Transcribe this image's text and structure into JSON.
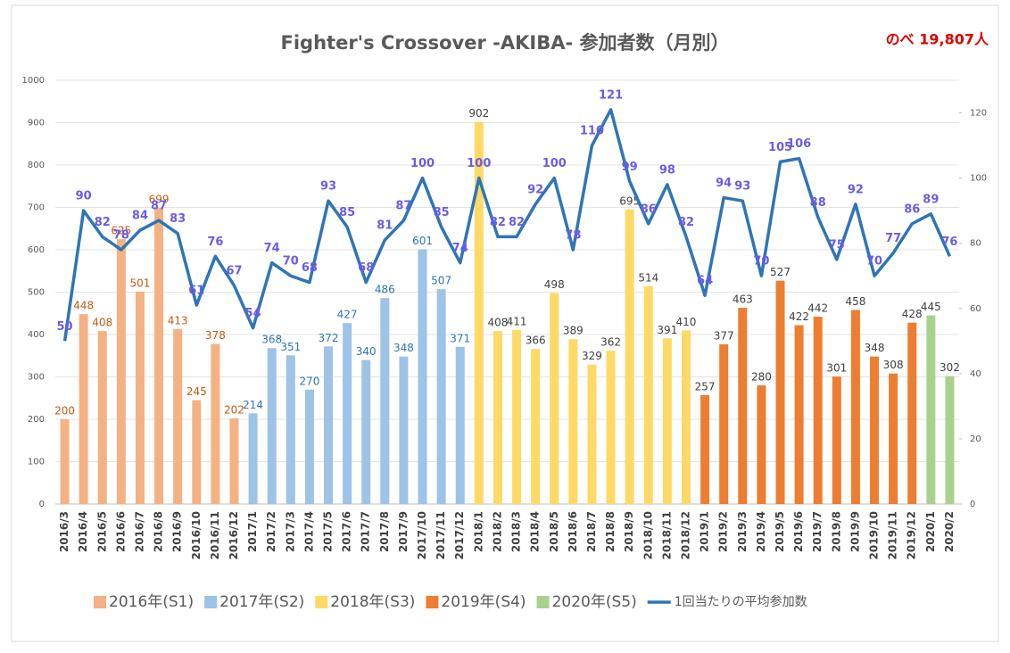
{
  "chart_data": {
    "type": "combo",
    "title": "Fighter's Crossover -AKIBA- 参加者数（月別）",
    "annotation": "のべ 19,807人",
    "categories": [
      "2016/3",
      "2016/4",
      "2016/5",
      "2016/6",
      "2016/7",
      "2016/8",
      "2016/9",
      "2016/10",
      "2016/11",
      "2016/12",
      "2017/1",
      "2017/2",
      "2017/3",
      "2017/4",
      "2017/5",
      "2017/6",
      "2017/7",
      "2017/8",
      "2017/9",
      "2017/10",
      "2017/11",
      "2017/12",
      "2018/1",
      "2018/2",
      "2018/3",
      "2018/4",
      "2018/5",
      "2018/6",
      "2018/7",
      "2018/8",
      "2018/9",
      "2018/10",
      "2018/11",
      "2018/12",
      "2019/1",
      "2019/2",
      "2019/3",
      "2019/4",
      "2019/5",
      "2019/6",
      "2019/7",
      "2019/8",
      "2019/9",
      "2019/10",
      "2019/11",
      "2019/12",
      "2020/1",
      "2020/2"
    ],
    "ylim": [
      0,
      1000
    ],
    "yticks": [
      0,
      100,
      200,
      300,
      400,
      500,
      600,
      700,
      800,
      900,
      1000
    ],
    "y2lim": [
      0,
      130
    ],
    "y2ticks": [
      0,
      20,
      40,
      60,
      80,
      100,
      120
    ],
    "grid": true,
    "series": [
      {
        "name": "2016年(S1)",
        "type": "bar",
        "color": "#f4b183",
        "label_color": "#c55a11",
        "values": [
          200,
          448,
          408,
          625,
          501,
          699,
          413,
          245,
          378,
          202,
          null,
          null,
          null,
          null,
          null,
          null,
          null,
          null,
          null,
          null,
          null,
          null,
          null,
          null,
          null,
          null,
          null,
          null,
          null,
          null,
          null,
          null,
          null,
          null,
          null,
          null,
          null,
          null,
          null,
          null,
          null,
          null,
          null,
          null,
          null,
          null,
          null,
          null
        ]
      },
      {
        "name": "2017年(S2)",
        "type": "bar",
        "color": "#9dc3e6",
        "label_color": "#2e75b6",
        "values": [
          null,
          null,
          null,
          null,
          null,
          null,
          null,
          null,
          null,
          null,
          214,
          368,
          351,
          270,
          372,
          427,
          340,
          486,
          348,
          601,
          507,
          371,
          null,
          null,
          null,
          null,
          null,
          null,
          null,
          null,
          null,
          null,
          null,
          null,
          null,
          null,
          null,
          null,
          null,
          null,
          null,
          null,
          null,
          null,
          null,
          null,
          null,
          null
        ]
      },
      {
        "name": "2018年(S3)",
        "type": "bar",
        "color": "#ffd966",
        "label_color": "#404040",
        "values": [
          null,
          null,
          null,
          null,
          null,
          null,
          null,
          null,
          null,
          null,
          null,
          null,
          null,
          null,
          null,
          null,
          null,
          null,
          null,
          null,
          null,
          null,
          902,
          408,
          411,
          366,
          498,
          389,
          329,
          362,
          695,
          514,
          391,
          410,
          null,
          null,
          null,
          null,
          null,
          null,
          null,
          null,
          null,
          null,
          null,
          null,
          null,
          null
        ]
      },
      {
        "name": "2019年(S4)",
        "type": "bar",
        "color": "#ed7d31",
        "label_color": "#404040",
        "values": [
          null,
          null,
          null,
          null,
          null,
          null,
          null,
          null,
          null,
          null,
          null,
          null,
          null,
          null,
          null,
          null,
          null,
          null,
          null,
          null,
          null,
          null,
          null,
          null,
          null,
          null,
          null,
          null,
          null,
          null,
          null,
          null,
          null,
          null,
          257,
          377,
          463,
          280,
          527,
          422,
          442,
          301,
          458,
          348,
          308,
          428,
          null,
          null
        ]
      },
      {
        "name": "2020年(S5)",
        "type": "bar",
        "color": "#a9d18e",
        "label_color": "#404040",
        "values": [
          null,
          null,
          null,
          null,
          null,
          null,
          null,
          null,
          null,
          null,
          null,
          null,
          null,
          null,
          null,
          null,
          null,
          null,
          null,
          null,
          null,
          null,
          null,
          null,
          null,
          null,
          null,
          null,
          null,
          null,
          null,
          null,
          null,
          null,
          null,
          null,
          null,
          null,
          null,
          null,
          null,
          null,
          null,
          null,
          null,
          null,
          445,
          302
        ]
      },
      {
        "name": "1回当たりの平均参加数",
        "type": "line",
        "axis": "y2",
        "color": "#2e75b6",
        "label_color": "#6b5ce7",
        "values": [
          50,
          90,
          82,
          78,
          84,
          87,
          83,
          61,
          76,
          67,
          54,
          74,
          70,
          68,
          93,
          85,
          68,
          81,
          87,
          100,
          85,
          74,
          100,
          82,
          82,
          92,
          100,
          78,
          110,
          121,
          99,
          86,
          98,
          82,
          64,
          94,
          93,
          70,
          105,
          106,
          88,
          75,
          92,
          70,
          77,
          86,
          89,
          76
        ]
      }
    ]
  }
}
